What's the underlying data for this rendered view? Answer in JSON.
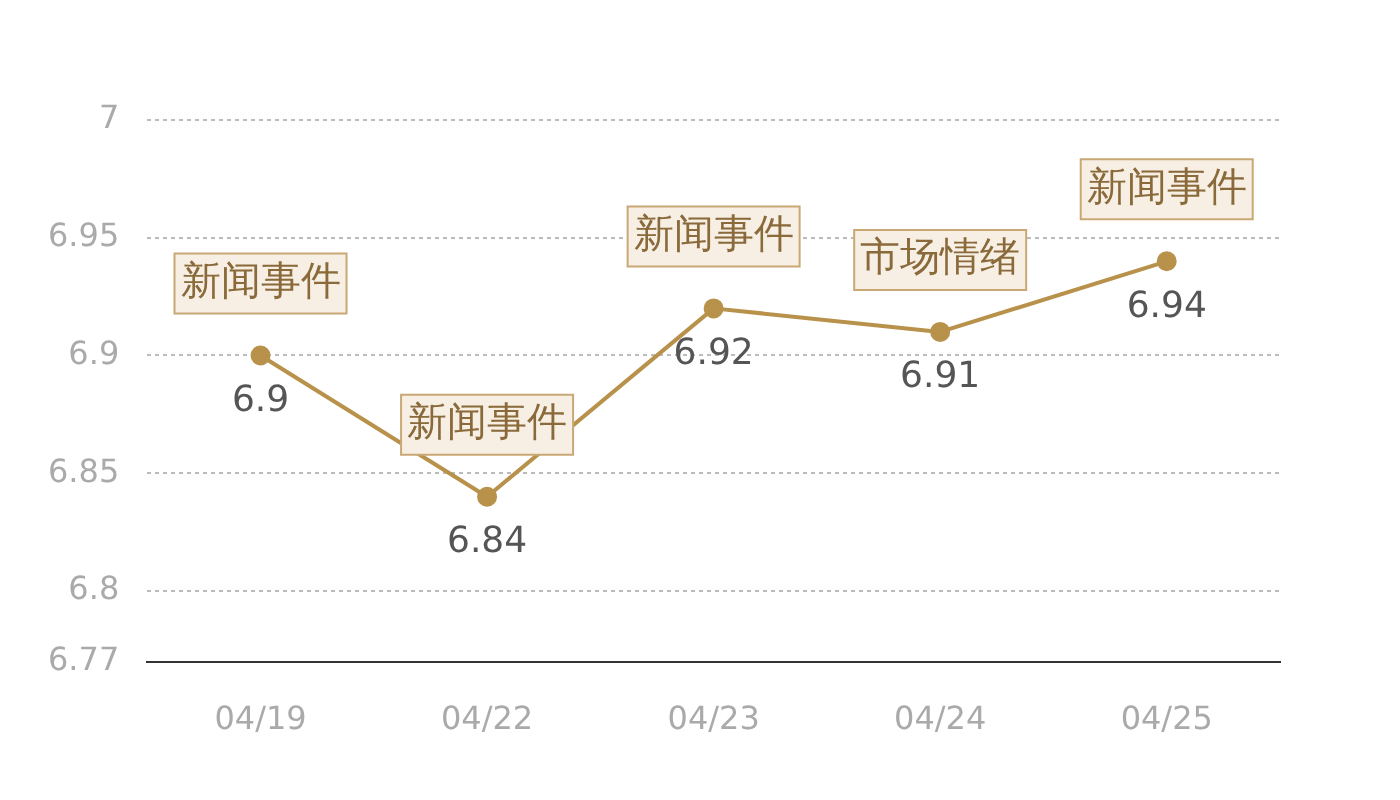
{
  "chart_data": {
    "type": "line",
    "categories": [
      "04/19",
      "04/22",
      "04/23",
      "04/24",
      "04/25"
    ],
    "series": [
      {
        "color": "#b8914a",
        "values": [
          6.9,
          6.84,
          6.92,
          6.91,
          6.94
        ]
      }
    ],
    "ylim": [
      6.77,
      7
    ],
    "yticks": [
      6.77,
      6.8,
      6.85,
      6.9,
      6.95,
      7
    ],
    "grid": "y",
    "marker": "circle",
    "line_style": "solid",
    "data_labels": true,
    "legend": false,
    "annotations": [
      {
        "text": "新闻事件",
        "x": "04/19",
        "y": 6.9
      },
      {
        "text": "新闻事件",
        "x": "04/22",
        "y": 6.84
      },
      {
        "text": "新闻事件",
        "x": "04/23",
        "y": 6.92
      },
      {
        "text": "市场情绪",
        "x": "04/24",
        "y": 6.91
      },
      {
        "text": "新闻事件",
        "x": "04/25",
        "y": 6.94
      }
    ]
  }
}
